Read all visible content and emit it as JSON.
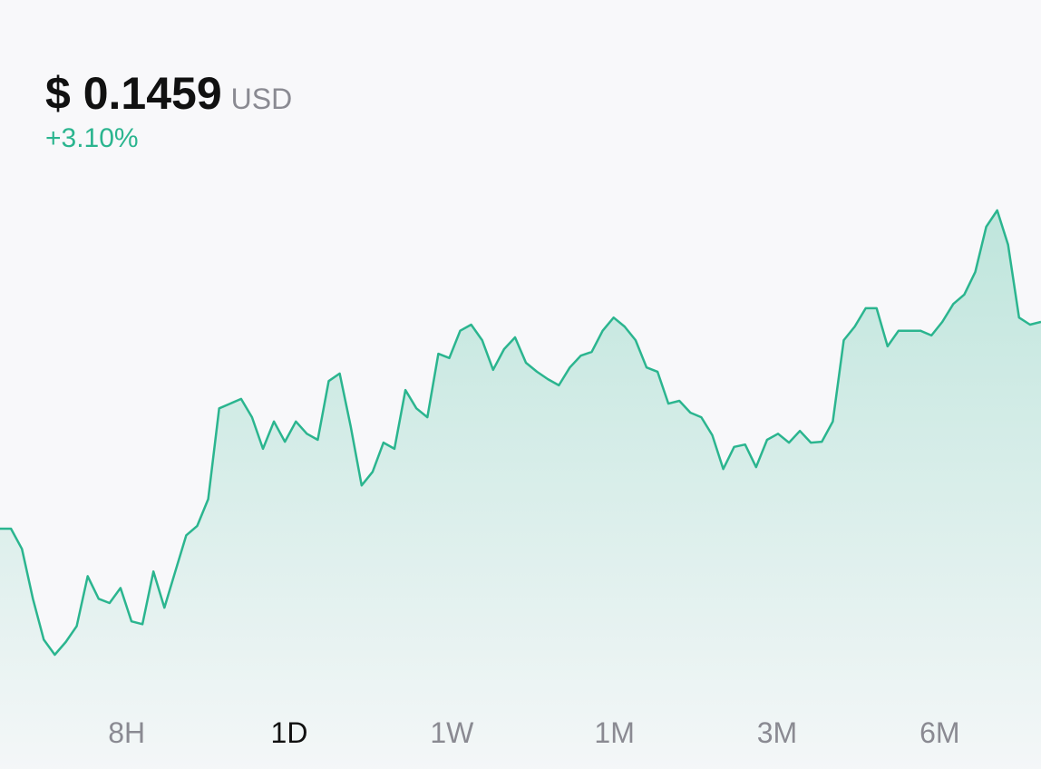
{
  "header": {
    "price": "$ 0.1459",
    "currency": "USD",
    "change": "+3.10%"
  },
  "chart_data": {
    "type": "line",
    "color": "#2bb58f",
    "values": [
      0.1415,
      0.1415,
      0.14107,
      0.14001,
      0.13914,
      0.13882,
      0.13909,
      0.13943,
      0.14049,
      0.14001,
      0.13992,
      0.14024,
      0.13953,
      0.13947,
      0.14059,
      0.13982,
      0.14059,
      0.14136,
      0.14156,
      0.14213,
      0.14406,
      0.14416,
      0.14426,
      0.14387,
      0.1432,
      0.14378,
      0.14335,
      0.14378,
      0.14352,
      0.14339,
      0.14464,
      0.1448,
      0.14368,
      0.14242,
      0.14271,
      0.14333,
      0.1432,
      0.14445,
      0.14406,
      0.14387,
      0.14522,
      0.14513,
      0.14571,
      0.14584,
      0.14551,
      0.14488,
      0.14532,
      0.14557,
      0.14503,
      0.14484,
      0.14468,
      0.14455,
      0.14493,
      0.14518,
      0.14526,
      0.14571,
      0.14599,
      0.1458,
      0.14551,
      0.14493,
      0.14484,
      0.14416,
      0.14422,
      0.14397,
      0.14387,
      0.14349,
      0.14277,
      0.14324,
      0.14329,
      0.14281,
      0.14339,
      0.14352,
      0.14333,
      0.14358,
      0.14333,
      0.14335,
      0.14378,
      0.14551,
      0.1458,
      0.14619,
      0.14619,
      0.14538,
      0.14571,
      0.14571,
      0.14571,
      0.14561,
      0.1459,
      0.14628,
      0.14648,
      0.14696,
      0.14792,
      0.14827,
      0.14754,
      0.14599,
      0.14584,
      0.1459
    ]
  },
  "ranges": [
    "8H",
    "1D",
    "1W",
    "1M",
    "3M",
    "6M"
  ]
}
